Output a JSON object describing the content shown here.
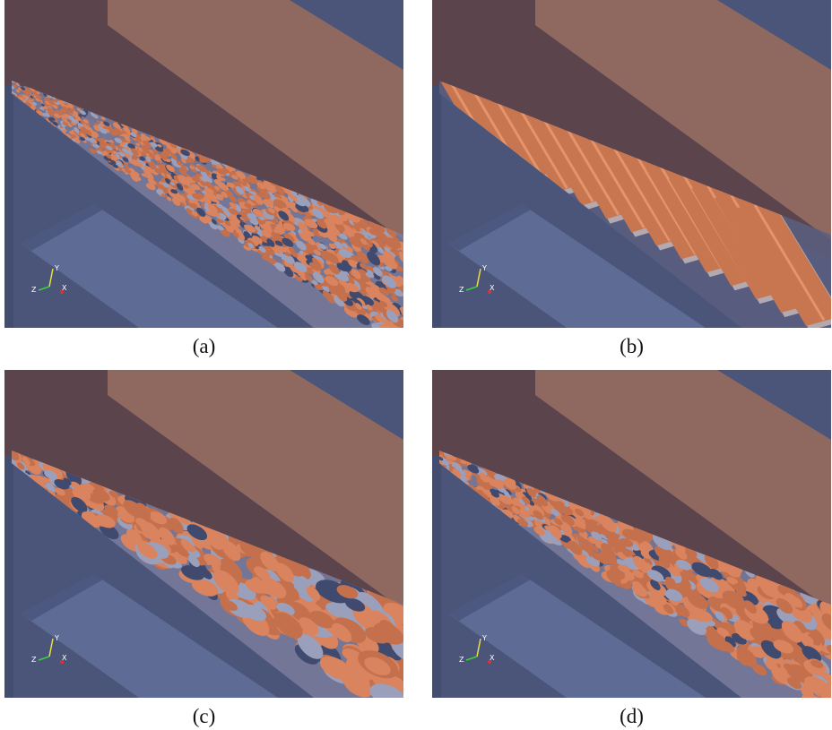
{
  "panels": [
    {
      "caption": "(a)",
      "axes": {
        "y": "Y",
        "z": "Z",
        "x": "X"
      }
    },
    {
      "caption": "(b)",
      "axes": {
        "y": "Y",
        "z": "Z",
        "x": "X"
      }
    },
    {
      "caption": "(c)",
      "axes": {
        "y": "Y",
        "z": "Z",
        "x": "X"
      }
    },
    {
      "caption": "(d)",
      "axes": {
        "y": "Y",
        "z": "Z",
        "x": "X"
      }
    }
  ]
}
